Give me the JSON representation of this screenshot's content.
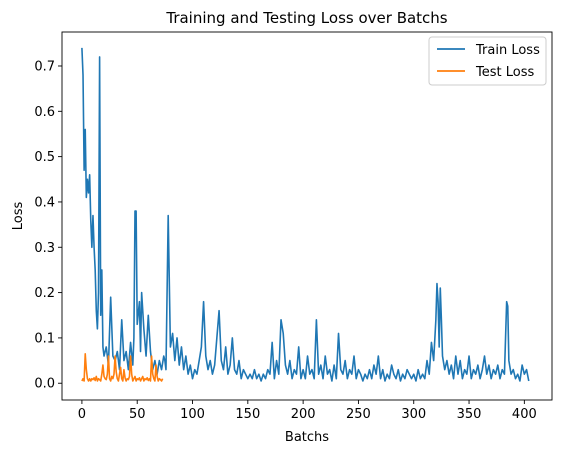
{
  "chart_data": {
    "type": "line",
    "title": "Training and Testing Loss over Batchs",
    "xlabel": "Batchs",
    "ylabel": "Loss",
    "xlim": [
      -18,
      425
    ],
    "ylim": [
      -0.037,
      0.775
    ],
    "xticks": [
      0,
      50,
      100,
      150,
      200,
      250,
      300,
      350,
      400
    ],
    "yticks": [
      0.0,
      0.1,
      0.2,
      0.3,
      0.4,
      0.5,
      0.6,
      0.7
    ],
    "ytick_labels": [
      "0.0",
      "0.1",
      "0.2",
      "0.3",
      "0.4",
      "0.5",
      "0.6",
      "0.7"
    ],
    "grid": false,
    "legend": "top-right",
    "series": [
      {
        "name": "Train Loss",
        "color": "#1f77b4",
        "points": [
          [
            0,
            0.74
          ],
          [
            1,
            0.68
          ],
          [
            2,
            0.47
          ],
          [
            3,
            0.56
          ],
          [
            4,
            0.41
          ],
          [
            5,
            0.45
          ],
          [
            6,
            0.42
          ],
          [
            7,
            0.46
          ],
          [
            8,
            0.36
          ],
          [
            9,
            0.3
          ],
          [
            10,
            0.37
          ],
          [
            11,
            0.3
          ],
          [
            12,
            0.25
          ],
          [
            13,
            0.16
          ],
          [
            14,
            0.12
          ],
          [
            15,
            0.2
          ],
          [
            16,
            0.72
          ],
          [
            17,
            0.15
          ],
          [
            18,
            0.25
          ],
          [
            19,
            0.08
          ],
          [
            20,
            0.06
          ],
          [
            22,
            0.08
          ],
          [
            24,
            0.04
          ],
          [
            26,
            0.19
          ],
          [
            28,
            0.06
          ],
          [
            30,
            0.05
          ],
          [
            32,
            0.07
          ],
          [
            34,
            0.03
          ],
          [
            36,
            0.14
          ],
          [
            38,
            0.05
          ],
          [
            40,
            0.07
          ],
          [
            42,
            0.03
          ],
          [
            44,
            0.09
          ],
          [
            46,
            0.04
          ],
          [
            47,
            0.1
          ],
          [
            48,
            0.38
          ],
          [
            49,
            0.38
          ],
          [
            50,
            0.13
          ],
          [
            52,
            0.18
          ],
          [
            53,
            0.07
          ],
          [
            54,
            0.2
          ],
          [
            56,
            0.12
          ],
          [
            58,
            0.06
          ],
          [
            60,
            0.15
          ],
          [
            62,
            0.07
          ],
          [
            64,
            0.03
          ],
          [
            66,
            0.05
          ],
          [
            68,
            0.02
          ],
          [
            70,
            0.05
          ],
          [
            72,
            0.03
          ],
          [
            74,
            0.06
          ],
          [
            75,
            0.05
          ],
          [
            76,
            0.03
          ],
          [
            78,
            0.37
          ],
          [
            80,
            0.08
          ],
          [
            82,
            0.11
          ],
          [
            84,
            0.05
          ],
          [
            86,
            0.1
          ],
          [
            88,
            0.04
          ],
          [
            90,
            0.08
          ],
          [
            92,
            0.03
          ],
          [
            94,
            0.06
          ],
          [
            96,
            0.02
          ],
          [
            98,
            0.04
          ],
          [
            100,
            0.01
          ],
          [
            102,
            0.03
          ],
          [
            104,
            0.02
          ],
          [
            106,
            0.05
          ],
          [
            108,
            0.08
          ],
          [
            110,
            0.18
          ],
          [
            112,
            0.06
          ],
          [
            114,
            0.03
          ],
          [
            116,
            0.05
          ],
          [
            118,
            0.02
          ],
          [
            120,
            0.04
          ],
          [
            122,
            0.1
          ],
          [
            124,
            0.16
          ],
          [
            126,
            0.05
          ],
          [
            128,
            0.03
          ],
          [
            130,
            0.08
          ],
          [
            132,
            0.02
          ],
          [
            134,
            0.04
          ],
          [
            136,
            0.1
          ],
          [
            138,
            0.03
          ],
          [
            140,
            0.02
          ],
          [
            142,
            0.05
          ],
          [
            144,
            0.01
          ],
          [
            146,
            0.03
          ],
          [
            148,
            0.02
          ],
          [
            150,
            0.01
          ],
          [
            152,
            0.02
          ],
          [
            154,
            0.01
          ],
          [
            156,
            0.03
          ],
          [
            158,
            0.01
          ],
          [
            160,
            0.02
          ],
          [
            162,
            0.005
          ],
          [
            164,
            0.02
          ],
          [
            166,
            0.01
          ],
          [
            168,
            0.03
          ],
          [
            170,
            0.02
          ],
          [
            172,
            0.09
          ],
          [
            174,
            0.01
          ],
          [
            176,
            0.05
          ],
          [
            178,
            0.02
          ],
          [
            180,
            0.14
          ],
          [
            182,
            0.11
          ],
          [
            184,
            0.04
          ],
          [
            186,
            0.02
          ],
          [
            188,
            0.05
          ],
          [
            190,
            0.01
          ],
          [
            192,
            0.03
          ],
          [
            194,
            0.02
          ],
          [
            196,
            0.08
          ],
          [
            198,
            0.01
          ],
          [
            200,
            0.03
          ],
          [
            202,
            0.01
          ],
          [
            204,
            0.06
          ],
          [
            206,
            0.02
          ],
          [
            208,
            0.03
          ],
          [
            210,
            0.01
          ],
          [
            212,
            0.14
          ],
          [
            214,
            0.02
          ],
          [
            216,
            0.04
          ],
          [
            218,
            0.01
          ],
          [
            220,
            0.06
          ],
          [
            222,
            0.02
          ],
          [
            224,
            0.03
          ],
          [
            226,
            0.005
          ],
          [
            228,
            0.04
          ],
          [
            230,
            0.01
          ],
          [
            232,
            0.11
          ],
          [
            234,
            0.03
          ],
          [
            236,
            0.02
          ],
          [
            238,
            0.05
          ],
          [
            240,
            0.01
          ],
          [
            242,
            0.03
          ],
          [
            244,
            0.02
          ],
          [
            246,
            0.06
          ],
          [
            248,
            0.01
          ],
          [
            250,
            0.03
          ],
          [
            252,
            0.02
          ],
          [
            254,
            0.005
          ],
          [
            256,
            0.02
          ],
          [
            258,
            0.01
          ],
          [
            260,
            0.03
          ],
          [
            262,
            0.01
          ],
          [
            264,
            0.04
          ],
          [
            266,
            0.02
          ],
          [
            268,
            0.06
          ],
          [
            270,
            0.01
          ],
          [
            272,
            0.03
          ],
          [
            274,
            0.005
          ],
          [
            276,
            0.02
          ],
          [
            278,
            0.01
          ],
          [
            280,
            0.04
          ],
          [
            282,
            0.02
          ],
          [
            284,
            0.01
          ],
          [
            286,
            0.03
          ],
          [
            288,
            0.005
          ],
          [
            290,
            0.02
          ],
          [
            292,
            0.01
          ],
          [
            294,
            0.03
          ],
          [
            296,
            0.02
          ],
          [
            298,
            0.01
          ],
          [
            300,
            0.02
          ],
          [
            302,
            0.005
          ],
          [
            304,
            0.03
          ],
          [
            306,
            0.01
          ],
          [
            308,
            0.02
          ],
          [
            310,
            0.01
          ],
          [
            312,
            0.05
          ],
          [
            314,
            0.02
          ],
          [
            316,
            0.09
          ],
          [
            318,
            0.05
          ],
          [
            320,
            0.14
          ],
          [
            321,
            0.22
          ],
          [
            322,
            0.18
          ],
          [
            323,
            0.08
          ],
          [
            324,
            0.21
          ],
          [
            325,
            0.14
          ],
          [
            326,
            0.06
          ],
          [
            328,
            0.03
          ],
          [
            330,
            0.05
          ],
          [
            332,
            0.02
          ],
          [
            334,
            0.04
          ],
          [
            336,
            0.01
          ],
          [
            338,
            0.06
          ],
          [
            340,
            0.02
          ],
          [
            342,
            0.05
          ],
          [
            344,
            0.01
          ],
          [
            346,
            0.03
          ],
          [
            348,
            0.02
          ],
          [
            350,
            0.06
          ],
          [
            352,
            0.01
          ],
          [
            354,
            0.03
          ],
          [
            356,
            0.02
          ],
          [
            358,
            0.04
          ],
          [
            360,
            0.01
          ],
          [
            362,
            0.03
          ],
          [
            364,
            0.06
          ],
          [
            366,
            0.02
          ],
          [
            368,
            0.04
          ],
          [
            370,
            0.01
          ],
          [
            372,
            0.03
          ],
          [
            374,
            0.02
          ],
          [
            376,
            0.04
          ],
          [
            378,
            0.01
          ],
          [
            380,
            0.03
          ],
          [
            382,
            0.02
          ],
          [
            384,
            0.18
          ],
          [
            385,
            0.17
          ],
          [
            386,
            0.05
          ],
          [
            388,
            0.02
          ],
          [
            390,
            0.03
          ],
          [
            392,
            0.01
          ],
          [
            394,
            0.02
          ],
          [
            396,
            0.005
          ],
          [
            398,
            0.04
          ],
          [
            400,
            0.02
          ],
          [
            402,
            0.03
          ],
          [
            404,
            0.005
          ]
        ]
      },
      {
        "name": "Test Loss",
        "color": "#ff7f0e",
        "points": [
          [
            0,
            0.005
          ],
          [
            1,
            0.01
          ],
          [
            2,
            0.005
          ],
          [
            3,
            0.065
          ],
          [
            4,
            0.03
          ],
          [
            5,
            0.01
          ],
          [
            6,
            0.005
          ],
          [
            7,
            0.01
          ],
          [
            8,
            0.005
          ],
          [
            9,
            0.01
          ],
          [
            10,
            0.008
          ],
          [
            11,
            0.012
          ],
          [
            12,
            0.006
          ],
          [
            13,
            0.015
          ],
          [
            14,
            0.005
          ],
          [
            15,
            0.01
          ],
          [
            16,
            0.008
          ],
          [
            17,
            0.005
          ],
          [
            18,
            0.02
          ],
          [
            19,
            0.04
          ],
          [
            20,
            0.015
          ],
          [
            21,
            0.01
          ],
          [
            22,
            0.008
          ],
          [
            23,
            0.02
          ],
          [
            24,
            0.06
          ],
          [
            25,
            0.01
          ],
          [
            26,
            0.005
          ],
          [
            27,
            0.015
          ],
          [
            28,
            0.01
          ],
          [
            29,
            0.02
          ],
          [
            30,
            0.06
          ],
          [
            31,
            0.025
          ],
          [
            32,
            0.01
          ],
          [
            33,
            0.005
          ],
          [
            34,
            0.02
          ],
          [
            35,
            0.035
          ],
          [
            36,
            0.01
          ],
          [
            37,
            0.005
          ],
          [
            38,
            0.03
          ],
          [
            39,
            0.012
          ],
          [
            40,
            0.005
          ],
          [
            41,
            0.01
          ],
          [
            42,
            0.008
          ],
          [
            43,
            0.015
          ],
          [
            44,
            0.06
          ],
          [
            45,
            0.02
          ],
          [
            46,
            0.005
          ],
          [
            47,
            0.01
          ],
          [
            48,
            0.015
          ],
          [
            49,
            0.005
          ],
          [
            50,
            0.01
          ],
          [
            51,
            0.008
          ],
          [
            52,
            0.012
          ],
          [
            53,
            0.005
          ],
          [
            54,
            0.01
          ],
          [
            55,
            0.015
          ],
          [
            56,
            0.005
          ],
          [
            57,
            0.01
          ],
          [
            58,
            0.008
          ],
          [
            59,
            0.012
          ],
          [
            60,
            0.006
          ],
          [
            61,
            0.01
          ],
          [
            62,
            0.005
          ],
          [
            63,
            0.06
          ],
          [
            64,
            0.02
          ],
          [
            65,
            0.01
          ],
          [
            66,
            0.005
          ],
          [
            67,
            0.04
          ],
          [
            68,
            0.015
          ],
          [
            69,
            0.005
          ],
          [
            70,
            0.01
          ],
          [
            71,
            0.008
          ],
          [
            72,
            0.005
          ],
          [
            73,
            0.01
          ]
        ]
      }
    ]
  }
}
